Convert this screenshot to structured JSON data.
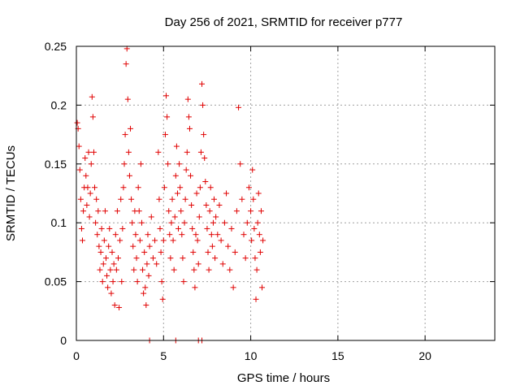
{
  "chart_data": {
    "type": "scatter",
    "title": "Day 256 of 2021, SRMTID for receiver p777",
    "xlabel": "GPS time / hours",
    "ylabel": "SRMTID / TECUs",
    "xlim": [
      0,
      24
    ],
    "ylim": [
      0,
      0.25
    ],
    "xticks": [
      0,
      5,
      10,
      15,
      20
    ],
    "yticks": [
      0,
      0.05,
      0.1,
      0.15,
      0.2,
      0.25
    ],
    "xtick_labels": [
      "0",
      "5",
      "10",
      "15",
      "20"
    ],
    "ytick_labels": [
      "0",
      "0.05",
      "0.1",
      "0.15",
      "0.2",
      "0.25"
    ],
    "grid": true,
    "marker": "+",
    "color": "#e00000",
    "series": [
      {
        "name": "SRMTID",
        "points": [
          [
            0.05,
            0.185
          ],
          [
            0.1,
            0.18
          ],
          [
            0.15,
            0.165
          ],
          [
            0.2,
            0.145
          ],
          [
            0.25,
            0.12
          ],
          [
            0.3,
            0.095
          ],
          [
            0.35,
            0.085
          ],
          [
            0.4,
            0.11
          ],
          [
            0.45,
            0.13
          ],
          [
            0.5,
            0.155
          ],
          [
            0.55,
            0.14
          ],
          [
            0.6,
            0.115
          ],
          [
            0.65,
            0.13
          ],
          [
            0.7,
            0.16
          ],
          [
            0.75,
            0.105
          ],
          [
            0.8,
            0.125
          ],
          [
            0.85,
            0.15
          ],
          [
            0.9,
            0.207
          ],
          [
            0.95,
            0.19
          ],
          [
            1.0,
            0.16
          ],
          [
            1.05,
            0.13
          ],
          [
            1.1,
            0.1
          ],
          [
            1.15,
            0.12
          ],
          [
            1.2,
            0.09
          ],
          [
            1.25,
            0.11
          ],
          [
            1.3,
            0.08
          ],
          [
            1.35,
            0.06
          ],
          [
            1.4,
            0.075
          ],
          [
            1.45,
            0.095
          ],
          [
            1.5,
            0.05
          ],
          [
            1.55,
            0.065
          ],
          [
            1.6,
            0.085
          ],
          [
            1.65,
            0.11
          ],
          [
            1.7,
            0.07
          ],
          [
            1.75,
            0.055
          ],
          [
            1.8,
            0.045
          ],
          [
            1.85,
            0.08
          ],
          [
            1.9,
            0.095
          ],
          [
            1.95,
            0.06
          ],
          [
            2.0,
            0.04
          ],
          [
            2.05,
            0.075
          ],
          [
            2.1,
            0.05
          ],
          [
            2.15,
            0.065
          ],
          [
            2.2,
            0.03
          ],
          [
            2.25,
            0.09
          ],
          [
            2.3,
            0.06
          ],
          [
            2.35,
            0.11
          ],
          [
            2.4,
            0.07
          ],
          [
            2.45,
            0.028
          ],
          [
            2.5,
            0.085
          ],
          [
            2.55,
            0.12
          ],
          [
            2.6,
            0.05
          ],
          [
            2.65,
            0.095
          ],
          [
            2.7,
            0.13
          ],
          [
            2.75,
            0.15
          ],
          [
            2.8,
            0.175
          ],
          [
            2.85,
            0.235
          ],
          [
            2.9,
            0.248
          ],
          [
            2.95,
            0.205
          ],
          [
            3.0,
            0.16
          ],
          [
            3.05,
            0.14
          ],
          [
            3.1,
            0.18
          ],
          [
            3.15,
            0.12
          ],
          [
            3.2,
            0.1
          ],
          [
            3.25,
            0.08
          ],
          [
            3.3,
            0.06
          ],
          [
            3.35,
            0.11
          ],
          [
            3.4,
            0.09
          ],
          [
            3.45,
            0.07
          ],
          [
            3.5,
            0.05
          ],
          [
            3.55,
            0.13
          ],
          [
            3.6,
            0.11
          ],
          [
            3.65,
            0.085
          ],
          [
            3.7,
            0.15
          ],
          [
            3.75,
            0.1
          ],
          [
            3.8,
            0.06
          ],
          [
            3.85,
            0.04
          ],
          [
            3.9,
            0.075
          ],
          [
            3.95,
            0.045
          ],
          [
            4.0,
            0.03
          ],
          [
            4.05,
            0.065
          ],
          [
            4.1,
            0.09
          ],
          [
            4.15,
            0.055
          ],
          [
            4.2,
            0.08
          ],
          [
            4.3,
            0.105
          ],
          [
            4.4,
            0.07
          ],
          [
            4.5,
            0.085
          ],
          [
            4.6,
            0.065
          ],
          [
            4.7,
            0.16
          ],
          [
            4.75,
            0.12
          ],
          [
            4.8,
            0.095
          ],
          [
            4.85,
            0.075
          ],
          [
            4.9,
            0.05
          ],
          [
            4.95,
            0.035
          ],
          [
            5.0,
            0.085
          ],
          [
            5.05,
            0.13
          ],
          [
            5.1,
            0.175
          ],
          [
            5.15,
            0.208
          ],
          [
            5.2,
            0.19
          ],
          [
            5.25,
            0.15
          ],
          [
            5.3,
            0.11
          ],
          [
            5.35,
            0.09
          ],
          [
            5.4,
            0.07
          ],
          [
            5.45,
            0.1
          ],
          [
            5.5,
            0.12
          ],
          [
            5.55,
            0.085
          ],
          [
            5.6,
            0.06
          ],
          [
            5.65,
            0.105
          ],
          [
            5.7,
            0.14
          ],
          [
            5.75,
            0.165
          ],
          [
            5.8,
            0.125
          ],
          [
            5.85,
            0.095
          ],
          [
            5.9,
            0.15
          ],
          [
            5.95,
            0.13
          ],
          [
            6.0,
            0.11
          ],
          [
            6.05,
            0.09
          ],
          [
            6.1,
            0.07
          ],
          [
            6.15,
            0.05
          ],
          [
            6.2,
            0.1
          ],
          [
            6.25,
            0.12
          ],
          [
            6.3,
            0.145
          ],
          [
            6.35,
            0.16
          ],
          [
            6.4,
            0.205
          ],
          [
            6.45,
            0.19
          ],
          [
            6.5,
            0.18
          ],
          [
            6.55,
            0.14
          ],
          [
            6.6,
            0.115
          ],
          [
            6.65,
            0.095
          ],
          [
            6.7,
            0.075
          ],
          [
            6.75,
            0.06
          ],
          [
            6.8,
            0.045
          ],
          [
            6.85,
            0.09
          ],
          [
            6.9,
            0.125
          ],
          [
            6.95,
            0.085
          ],
          [
            7.0,
            0.065
          ],
          [
            7.05,
            0.105
          ],
          [
            7.1,
            0.13
          ],
          [
            7.15,
            0.16
          ],
          [
            7.2,
            0.218
          ],
          [
            7.25,
            0.2
          ],
          [
            7.3,
            0.175
          ],
          [
            7.35,
            0.155
          ],
          [
            7.4,
            0.135
          ],
          [
            7.45,
            0.115
          ],
          [
            7.5,
            0.095
          ],
          [
            7.55,
            0.075
          ],
          [
            7.6,
            0.06
          ],
          [
            7.65,
            0.11
          ],
          [
            7.7,
            0.13
          ],
          [
            7.75,
            0.09
          ],
          [
            7.8,
            0.08
          ],
          [
            7.85,
            0.1
          ],
          [
            7.9,
            0.12
          ],
          [
            7.95,
            0.07
          ],
          [
            8.0,
            0.105
          ],
          [
            8.1,
            0.09
          ],
          [
            8.2,
            0.115
          ],
          [
            8.3,
            0.085
          ],
          [
            8.4,
            0.065
          ],
          [
            8.5,
            0.1
          ],
          [
            8.6,
            0.125
          ],
          [
            8.7,
            0.08
          ],
          [
            8.8,
            0.06
          ],
          [
            8.9,
            0.095
          ],
          [
            9.0,
            0.045
          ],
          [
            9.1,
            0.075
          ],
          [
            9.2,
            0.11
          ],
          [
            9.3,
            0.198
          ],
          [
            9.4,
            0.15
          ],
          [
            9.5,
            0.12
          ],
          [
            9.6,
            0.09
          ],
          [
            9.7,
            0.07
          ],
          [
            9.8,
            0.1
          ],
          [
            9.9,
            0.13
          ],
          [
            10.0,
            0.11
          ],
          [
            10.05,
            0.085
          ],
          [
            10.1,
            0.145
          ],
          [
            10.15,
            0.12
          ],
          [
            10.2,
            0.095
          ],
          [
            10.25,
            0.07
          ],
          [
            10.3,
            0.035
          ],
          [
            10.35,
            0.06
          ],
          [
            10.4,
            0.1
          ],
          [
            10.45,
            0.125
          ],
          [
            10.5,
            0.09
          ],
          [
            10.55,
            0.075
          ],
          [
            10.6,
            0.11
          ],
          [
            10.65,
            0.045
          ],
          [
            10.7,
            0.085
          ],
          [
            4.2,
            0.0
          ],
          [
            5.7,
            0.0
          ],
          [
            7.0,
            0.0
          ],
          [
            7.2,
            0.0
          ]
        ]
      }
    ]
  }
}
